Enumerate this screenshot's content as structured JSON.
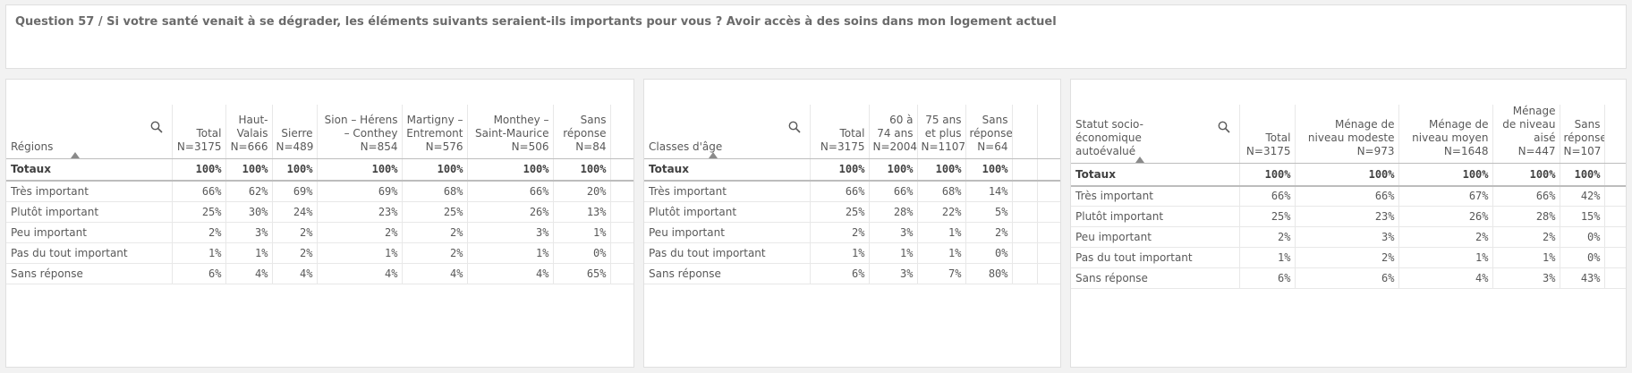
{
  "title": "Question 57 / Si votre santé venait à se dégrader, les éléments suivants seraient-ils importants pour vous ? Avoir accès à des soins dans mon logement actuel",
  "tables": [
    {
      "dimension": "Régions",
      "columns": [
        {
          "line1": "Total",
          "line2": "N=3175"
        },
        {
          "line1": "Haut-Valais",
          "line2": "N=666"
        },
        {
          "line1": "Sierre",
          "line2": "N=489"
        },
        {
          "line1": "Sion – Hérens – Conthey",
          "line2": "N=854"
        },
        {
          "line1": "Martigny – Entremont",
          "line2": "N=576"
        },
        {
          "line1": "Monthey – Saint-Maurice",
          "line2": "N=506"
        },
        {
          "line1": "Sans réponse",
          "line2": "N=84"
        }
      ],
      "totals": {
        "label": "Totaux",
        "values": [
          "100%",
          "100%",
          "100%",
          "100%",
          "100%",
          "100%",
          "100%"
        ]
      },
      "rows": [
        {
          "label": "Très important",
          "values": [
            "66%",
            "62%",
            "69%",
            "69%",
            "68%",
            "66%",
            "20%"
          ]
        },
        {
          "label": "Plutôt important",
          "values": [
            "25%",
            "30%",
            "24%",
            "23%",
            "25%",
            "26%",
            "13%"
          ]
        },
        {
          "label": "Peu important",
          "values": [
            "2%",
            "3%",
            "2%",
            "2%",
            "2%",
            "3%",
            "1%"
          ]
        },
        {
          "label": "Pas du tout important",
          "values": [
            "1%",
            "1%",
            "2%",
            "1%",
            "2%",
            "1%",
            "0%"
          ]
        },
        {
          "label": "Sans réponse",
          "values": [
            "6%",
            "4%",
            "4%",
            "4%",
            "4%",
            "4%",
            "65%"
          ]
        }
      ]
    },
    {
      "dimension": "Classes d'âge",
      "columns": [
        {
          "line1": "Total",
          "line2": "N=3175"
        },
        {
          "line1": "60 à 74 ans",
          "line2": "N=2004"
        },
        {
          "line1": "75 ans et plus",
          "line2": "N=1107"
        },
        {
          "line1": "Sans réponse",
          "line2": "N=64"
        }
      ],
      "totals": {
        "label": "Totaux",
        "values": [
          "100%",
          "100%",
          "100%",
          "100%"
        ]
      },
      "rows": [
        {
          "label": "Très important",
          "values": [
            "66%",
            "66%",
            "68%",
            "14%"
          ]
        },
        {
          "label": "Plutôt important",
          "values": [
            "25%",
            "28%",
            "22%",
            "5%"
          ]
        },
        {
          "label": "Peu important",
          "values": [
            "2%",
            "3%",
            "1%",
            "2%"
          ]
        },
        {
          "label": "Pas du tout important",
          "values": [
            "1%",
            "1%",
            "1%",
            "0%"
          ]
        },
        {
          "label": "Sans réponse",
          "values": [
            "6%",
            "3%",
            "7%",
            "80%"
          ]
        }
      ]
    },
    {
      "dimension": "Statut socio-économique autoévalué",
      "columns": [
        {
          "line1": "Total",
          "line2": "N=3175"
        },
        {
          "line1": "Ménage de niveau modeste",
          "line2": "N=973"
        },
        {
          "line1": "Ménage de niveau moyen",
          "line2": "N=1648"
        },
        {
          "line1": "Ménage de niveau aisé",
          "line2": "N=447"
        },
        {
          "line1": "Sans réponse",
          "line2": "N=107"
        }
      ],
      "totals": {
        "label": "Totaux",
        "values": [
          "100%",
          "100%",
          "100%",
          "100%",
          "100%"
        ]
      },
      "rows": [
        {
          "label": "Très important",
          "values": [
            "66%",
            "66%",
            "67%",
            "66%",
            "42%"
          ]
        },
        {
          "label": "Plutôt important",
          "values": [
            "25%",
            "23%",
            "26%",
            "28%",
            "15%"
          ]
        },
        {
          "label": "Peu important",
          "values": [
            "2%",
            "3%",
            "2%",
            "2%",
            "0%"
          ]
        },
        {
          "label": "Pas du tout important",
          "values": [
            "1%",
            "2%",
            "1%",
            "1%",
            "0%"
          ]
        },
        {
          "label": "Sans réponse",
          "values": [
            "6%",
            "6%",
            "4%",
            "3%",
            "43%"
          ]
        }
      ]
    }
  ]
}
